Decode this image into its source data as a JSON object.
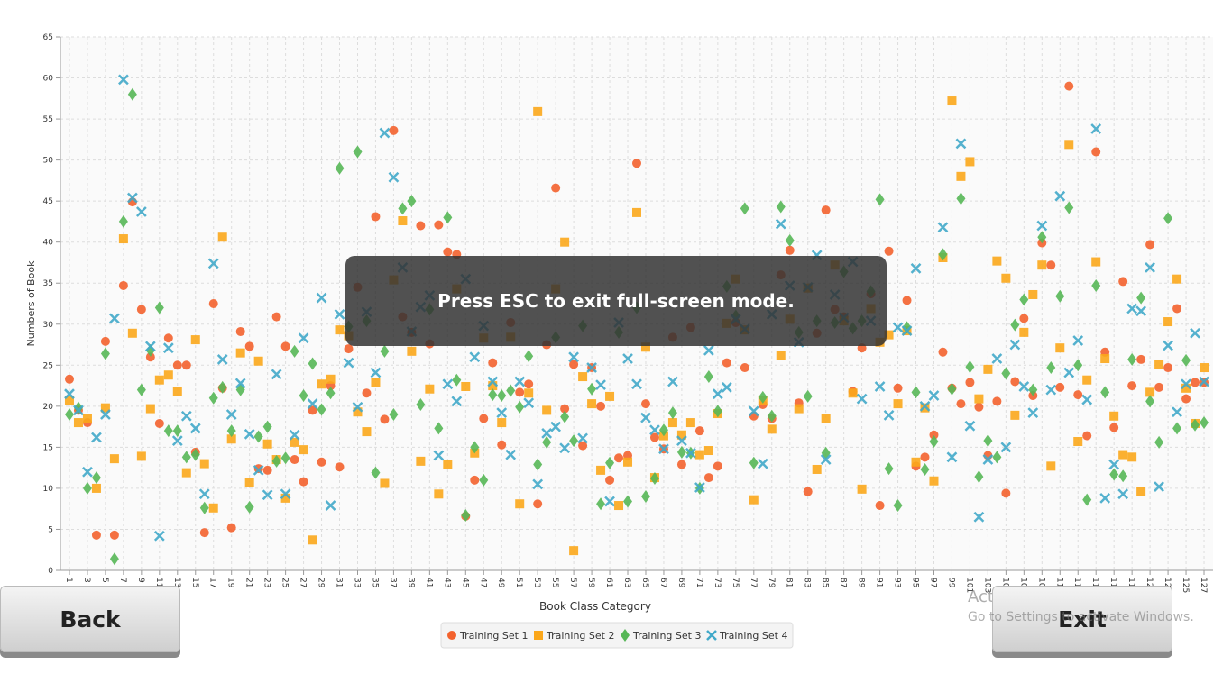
{
  "chart_data": {
    "type": "scatter",
    "x_label": "Book Class Category",
    "y_label": "Numbers of Book",
    "x": [
      1,
      2,
      3,
      4,
      5,
      6,
      7,
      8,
      9,
      10,
      11,
      12,
      13,
      14,
      15,
      16,
      17,
      18,
      19,
      20,
      21,
      22,
      23,
      24,
      25,
      26,
      27,
      28,
      29,
      30,
      31,
      32,
      33,
      34,
      35,
      36,
      37,
      38,
      39,
      40,
      41,
      42,
      43,
      44,
      45,
      46,
      47,
      48,
      49,
      50,
      51,
      52,
      53,
      54,
      55,
      56,
      57,
      58,
      59,
      60,
      61,
      62,
      63,
      64,
      65,
      66,
      67,
      68,
      69,
      70,
      71,
      72,
      73,
      74,
      75,
      76,
      77,
      78,
      79,
      80,
      81,
      82,
      83,
      84,
      85,
      86,
      87,
      88,
      89,
      90,
      91,
      92,
      93,
      94,
      95,
      96,
      97,
      98,
      99,
      100,
      101,
      102,
      103,
      104,
      105,
      106,
      107,
      108,
      109,
      110,
      111,
      112,
      113,
      114,
      115,
      116,
      117,
      118,
      119,
      120,
      121,
      122,
      123,
      124,
      125,
      126,
      127
    ],
    "xlim": [
      0,
      128
    ],
    "xticks": [
      1,
      3,
      5,
      7,
      9,
      11,
      13,
      15,
      17,
      19,
      21,
      23,
      25,
      27,
      29,
      31,
      33,
      35,
      37,
      39,
      41,
      43,
      45,
      47,
      49,
      51,
      53,
      55,
      57,
      59,
      61,
      63,
      65,
      67,
      69,
      71,
      73,
      75,
      77,
      79,
      81,
      83,
      85,
      87,
      89,
      91,
      93,
      95,
      97,
      99,
      101,
      103,
      105,
      107,
      109,
      111,
      113,
      115,
      117,
      119,
      121,
      123,
      125,
      127
    ],
    "ylim": [
      0,
      65
    ],
    "yticks": [
      0,
      5,
      10,
      15,
      20,
      25,
      30,
      35,
      40,
      45,
      50,
      55,
      60,
      65
    ],
    "grid": true,
    "legend": "bottom",
    "series": [
      {
        "name": "Training Set 1",
        "color": "#f3622d",
        "marker": "circle",
        "values": [
          23.3,
          19.5,
          18,
          4.3,
          27.9,
          4.3,
          34.7,
          44.9,
          31.8,
          26,
          17.9,
          28.3,
          25,
          25,
          14.4,
          4.6,
          32.5,
          22.2,
          5.2,
          29.1,
          27.3,
          12.4,
          12.2,
          30.9,
          27.3,
          13.5,
          10.8,
          19.5,
          13.2,
          22.5,
          12.6,
          27,
          34.5,
          21.6,
          43.1,
          18.4,
          53.6,
          30.9,
          29,
          42,
          27.6,
          42.1,
          38.8,
          38.5,
          6.6,
          11,
          18.5,
          25.3,
          15.3,
          30.2,
          21.7,
          22.7,
          8.1,
          27.5,
          46.6,
          19.7,
          25.1,
          15.2,
          24.7,
          20,
          11,
          13.7,
          14,
          49.6,
          20.3,
          16.2,
          14.8,
          28.4,
          12.9,
          29.6,
          17,
          11.3,
          12.7,
          25.3,
          30.2,
          24.7,
          18.8,
          20.2,
          18.5,
          36,
          39,
          20.4,
          9.6,
          28.9,
          43.9,
          31.8,
          30.9,
          21.8,
          27.1,
          33.7,
          7.9,
          38.9,
          22.2,
          32.9,
          12.7,
          13.8,
          16.5,
          26.6,
          22.2,
          20.3,
          22.9,
          19.9,
          14,
          20.6,
          9.4,
          23,
          30.7,
          21.3,
          39.9,
          37.2,
          22.3,
          59,
          21.4,
          16.4,
          51,
          26.6,
          17.4,
          35.2,
          22.5,
          25.7,
          39.7,
          22.3,
          24.7,
          31.9,
          20.9,
          22.9,
          22.9
        ]
      },
      {
        "name": "Training Set 2",
        "color": "#fba71b",
        "marker": "square",
        "values": [
          20.7,
          18,
          18.5,
          10,
          19.8,
          13.6,
          40.4,
          28.9,
          13.9,
          19.7,
          23.2,
          23.8,
          21.8,
          11.9,
          28.1,
          13,
          7.6,
          40.6,
          16,
          26.5,
          10.7,
          25.5,
          15.4,
          13.5,
          8.8,
          15.6,
          14.7,
          3.7,
          22.7,
          23.3,
          29.3,
          28.6,
          19.3,
          16.9,
          22.9,
          10.6,
          35.4,
          42.6,
          26.7,
          13.3,
          22.1,
          9.3,
          12.9,
          34.3,
          22.4,
          14.3,
          28.3,
          22.5,
          18,
          28.4,
          8.1,
          21.6,
          55.9,
          19.5,
          34.3,
          40,
          2.4,
          23.6,
          20.3,
          12.2,
          21.2,
          7.9,
          13.2,
          43.6,
          27.2,
          11.3,
          16.4,
          18,
          16.5,
          18,
          14.1,
          14.6,
          19.1,
          30.1,
          35.5,
          29.3,
          8.6,
          20.7,
          17.2,
          26.2,
          30.6,
          19.7,
          34.4,
          12.3,
          18.5,
          37.2,
          30.4,
          21.6,
          9.9,
          31.9,
          27.8,
          28.7,
          20.3,
          29.2,
          13.2,
          19.8,
          10.9,
          38.1,
          57.2,
          48,
          49.8,
          20.9,
          24.5,
          37.7,
          35.6,
          18.9,
          29,
          33.6,
          37.2,
          12.7,
          27.1,
          51.9,
          15.7,
          23.2,
          37.6,
          25.8,
          18.8,
          14.1,
          13.8,
          9.6,
          21.7,
          25.1,
          30.3,
          35.5,
          22.2,
          17.9,
          24.7
        ]
      },
      {
        "name": "Training Set 3",
        "color": "#57b757",
        "marker": "diamond",
        "values": [
          19,
          19.8,
          10,
          11.3,
          26.4,
          1.4,
          42.5,
          58,
          22,
          26.8,
          32,
          17,
          17,
          13.8,
          14.1,
          7.6,
          21,
          22.3,
          17,
          22,
          7.7,
          16.3,
          17.5,
          13.3,
          13.7,
          26.7,
          21.3,
          25.2,
          19.6,
          21.6,
          49,
          29.7,
          51,
          30.4,
          11.9,
          26.7,
          19,
          44.1,
          45,
          20.2,
          31.8,
          17.3,
          43,
          23.2,
          6.7,
          15,
          11,
          21.4,
          21.3,
          21.9,
          19.9,
          26.1,
          12.9,
          15.6,
          28.4,
          18.7,
          15.8,
          29.8,
          22.1,
          8.1,
          13.1,
          29,
          8.4,
          32,
          9,
          11.2,
          17.1,
          19.2,
          14.4,
          14.3,
          10,
          23.6,
          19.4,
          34.6,
          31,
          44.1,
          13.1,
          21.1,
          18.8,
          44.3,
          40.2,
          29,
          21.2,
          30.4,
          14.3,
          30.2,
          36.4,
          29.5,
          30.4,
          34,
          45.2,
          12.4,
          7.9,
          29.6,
          21.7,
          12.3,
          15.7,
          38.5,
          22.1,
          45.3,
          24.8,
          11.4,
          15.8,
          13.8,
          24,
          29.9,
          33,
          22,
          40.6,
          24.7,
          33.4,
          44.2,
          25,
          8.6,
          34.7,
          21.7,
          11.7,
          11.5,
          25.7,
          33.2,
          20.6,
          15.6,
          42.9,
          17.3,
          25.6,
          17.7,
          18
        ]
      },
      {
        "name": "Training Set 4",
        "color": "#41a9c9",
        "marker": "cross",
        "values": [
          21.5,
          19.5,
          12,
          16.2,
          19,
          30.7,
          59.8,
          45.4,
          43.7,
          27.3,
          4.2,
          27.1,
          15.8,
          18.8,
          17.3,
          9.3,
          37.4,
          25.7,
          19,
          22.8,
          16.6,
          12.2,
          9.2,
          23.9,
          9.3,
          16.5,
          28.3,
          20.3,
          33.2,
          7.9,
          31.2,
          25.3,
          19.9,
          31.5,
          24.1,
          53.3,
          47.9,
          36.9,
          29.1,
          32.1,
          33.5,
          14,
          22.7,
          20.6,
          35.5,
          26,
          29.8,
          23,
          19.2,
          14.1,
          23,
          20.4,
          10.5,
          16.7,
          17.5,
          14.9,
          26,
          16.1,
          24.7,
          22.6,
          8.4,
          30.2,
          25.8,
          22.7,
          18.6,
          17.1,
          14.8,
          23,
          15.8,
          14.3,
          10.1,
          26.8,
          21.5,
          22.3,
          30.6,
          29.4,
          19.4,
          13,
          31.2,
          42.2,
          34.7,
          27.8,
          34.5,
          38.4,
          13.5,
          33.6,
          30.8,
          37.6,
          20.9,
          30.4,
          22.4,
          18.9,
          29.6,
          29.2,
          36.8,
          20,
          21.3,
          41.8,
          13.8,
          52,
          17.6,
          6.5,
          13.5,
          25.8,
          15,
          27.5,
          22.4,
          19.2,
          42,
          22,
          45.6,
          24.1,
          28,
          20.8,
          53.8,
          8.8,
          12.9,
          9.3,
          31.9,
          31.6,
          36.9,
          10.2,
          27.4,
          19.3,
          22.7,
          28.9,
          23
        ]
      }
    ]
  },
  "overlay": "Press ESC to exit full-screen mode.",
  "buttons": {
    "back": "Back",
    "exit": "Exit"
  },
  "watermark": {
    "title": "Activate Windows",
    "text": "Go to Settings to activate Windows."
  }
}
